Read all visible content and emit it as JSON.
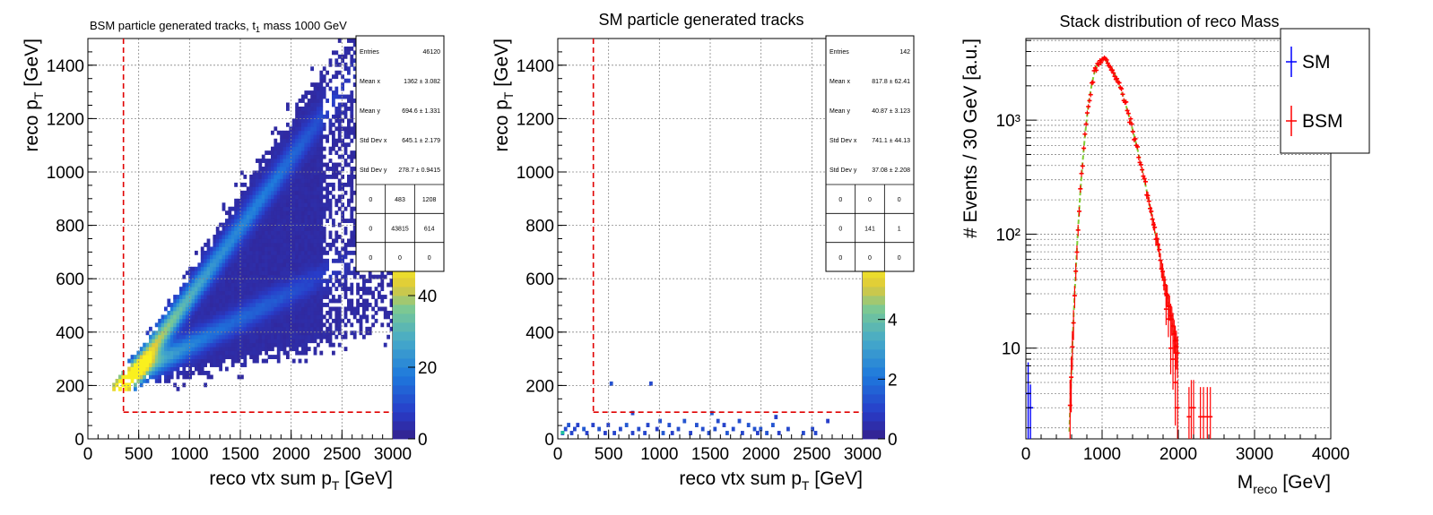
{
  "chart_data": [
    {
      "type": "heatmap",
      "title_main": "BSM particle generated tracks, ",
      "title_tilde": "t",
      "title_sub": "1",
      "title_rest": " mass 1000 GeV",
      "xlabel_main": "reco vtx sum p",
      "xlabel_sub": "T",
      "xlabel_unit": " [GeV]",
      "ylabel_main": "reco p",
      "ylabel_sub": "T",
      "ylabel_unit": " [GeV]",
      "xlim": [
        0,
        3000
      ],
      "ylim": [
        0,
        1500
      ],
      "xticks": [
        "0",
        "500",
        "1000",
        "1500",
        "2000",
        "2500",
        "3000"
      ],
      "yticks": [
        "0",
        "200",
        "400",
        "600",
        "800",
        "1000",
        "1200",
        "1400"
      ],
      "zlim": [
        0,
        50
      ],
      "zticks": [
        "0",
        "20",
        "40"
      ],
      "cuts": {
        "x": 350,
        "y": 100
      },
      "stats": {
        "entries_label": "Entries",
        "entries": "46120",
        "meanx_label": "Mean x",
        "meanx": "1362 ± 3.082",
        "meany_label": "Mean y",
        "meany": "694.6 ± 1.331",
        "stdx_label": "Std Dev x",
        "stdx": "645.1 ± 2.179",
        "stdy_label": "Std Dev y",
        "stdy": "278.7 ± 0.9415",
        "grid": [
          [
            "0",
            "483",
            "1208"
          ],
          [
            "0",
            "43815",
            "614"
          ],
          [
            "0",
            "0",
            "0"
          ]
        ]
      }
    },
    {
      "type": "heatmap",
      "title": "SM particle generated tracks",
      "xlabel_main": "reco vtx sum p",
      "xlabel_sub": "T",
      "xlabel_unit": " [GeV]",
      "ylabel_main": "reco p",
      "ylabel_sub": "T",
      "ylabel_unit": " [GeV]",
      "xlim": [
        0,
        3000
      ],
      "ylim": [
        0,
        1500
      ],
      "xticks": [
        "0",
        "500",
        "1000",
        "1500",
        "2000",
        "2500",
        "3000"
      ],
      "yticks": [
        "0",
        "200",
        "400",
        "600",
        "800",
        "1000",
        "1200",
        "1400"
      ],
      "zlim": [
        0,
        6
      ],
      "zticks": [
        "0",
        "2",
        "4"
      ],
      "cuts": {
        "x": 350,
        "y": 100
      },
      "stats": {
        "entries_label": "Entries",
        "entries": "142",
        "meanx_label": "Mean x",
        "meanx": "817.8 ± 62.41",
        "meany_label": "Mean y",
        "meany": "40.87 ± 3.123",
        "stdx_label": "Std Dev x",
        "stdx": "741.1 ± 44.13",
        "stdy_label": "Std Dev y",
        "stdy": "37.08 ± 2.208",
        "grid": [
          [
            "0",
            "0",
            "0"
          ],
          [
            "0",
            "141",
            "1"
          ],
          [
            "0",
            "0",
            "0"
          ]
        ]
      }
    },
    {
      "type": "bar",
      "title": "Stack distribution of reco Mass",
      "xlabel_main": "M",
      "xlabel_sub": "reco",
      "xlabel_unit": " [GeV]",
      "ylabel": "# Events / 30 GeV [a.u.]",
      "xlim": [
        0,
        4000
      ],
      "ylim": [
        1.6,
        5200
      ],
      "log_y": true,
      "xticks": [
        "0",
        "1000",
        "2000",
        "3000",
        "4000"
      ],
      "yticks": [
        {
          "v": 10,
          "label": "10"
        },
        {
          "v": 100,
          "label": "10²"
        },
        {
          "v": 1000,
          "label": "10³"
        }
      ],
      "legend": [
        {
          "name": "SM",
          "color": "#0000ff"
        },
        {
          "name": "BSM",
          "color": "#ff0000"
        }
      ],
      "fit_color": "#7fcc33",
      "series": [
        {
          "name": "SM",
          "color": "#0000ff",
          "points": [
            [
              30,
              4,
              3.5
            ],
            [
              60,
              3,
              1.8
            ]
          ]
        },
        {
          "name": "BSM",
          "color": "#ff0000",
          "peak": 1000,
          "peak_value": 3400,
          "sigma_left": 0.145,
          "sigma_right": 0.2,
          "x_from": 370,
          "x_to": 1990
        },
        {
          "name": "BSM-tail",
          "color": "#ff0000",
          "points": [
            [
              1840,
              22
            ],
            [
              1870,
              18
            ],
            [
              1900,
              10
            ],
            [
              1930,
              8
            ],
            [
              1960,
              5
            ],
            [
              1990,
              3
            ],
            [
              2140,
              2.5
            ],
            [
              2170,
              3
            ],
            [
              2200,
              3
            ],
            [
              2290,
              2.5
            ],
            [
              2330,
              2.5
            ],
            [
              2380,
              2.5
            ],
            [
              2420,
              2.5
            ]
          ]
        }
      ]
    }
  ]
}
